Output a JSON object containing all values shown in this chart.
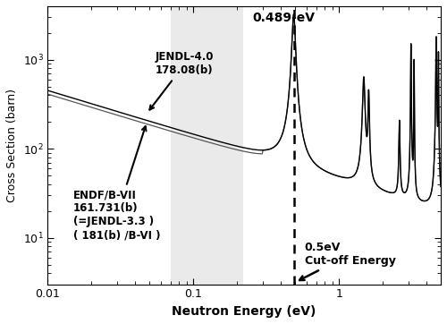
{
  "xlabel": "Neutron Energy (eV)",
  "ylabel": "Cross Section (barn)",
  "xlim": [
    0.01,
    5.0
  ],
  "ylim": [
    3.0,
    4000.0
  ],
  "shaded_region": [
    0.07,
    0.22
  ],
  "shaded_color": "#cccccc",
  "cutoff_energy": 0.5,
  "peak_energy": 0.489,
  "annotation_jendl": "JENDL-4.0\n178.08(b)",
  "annotation_endf": "ENDF/B-VII\n161.731(b)\n(=JENDL-3.3 )\n( 181(b) /B-VI )",
  "annotation_cutoff": "0.5eV\nCut-off Energy",
  "annotation_peak_label": "0.489-eV",
  "line_color_jendl": "#000000",
  "line_color_endf": "#555555"
}
